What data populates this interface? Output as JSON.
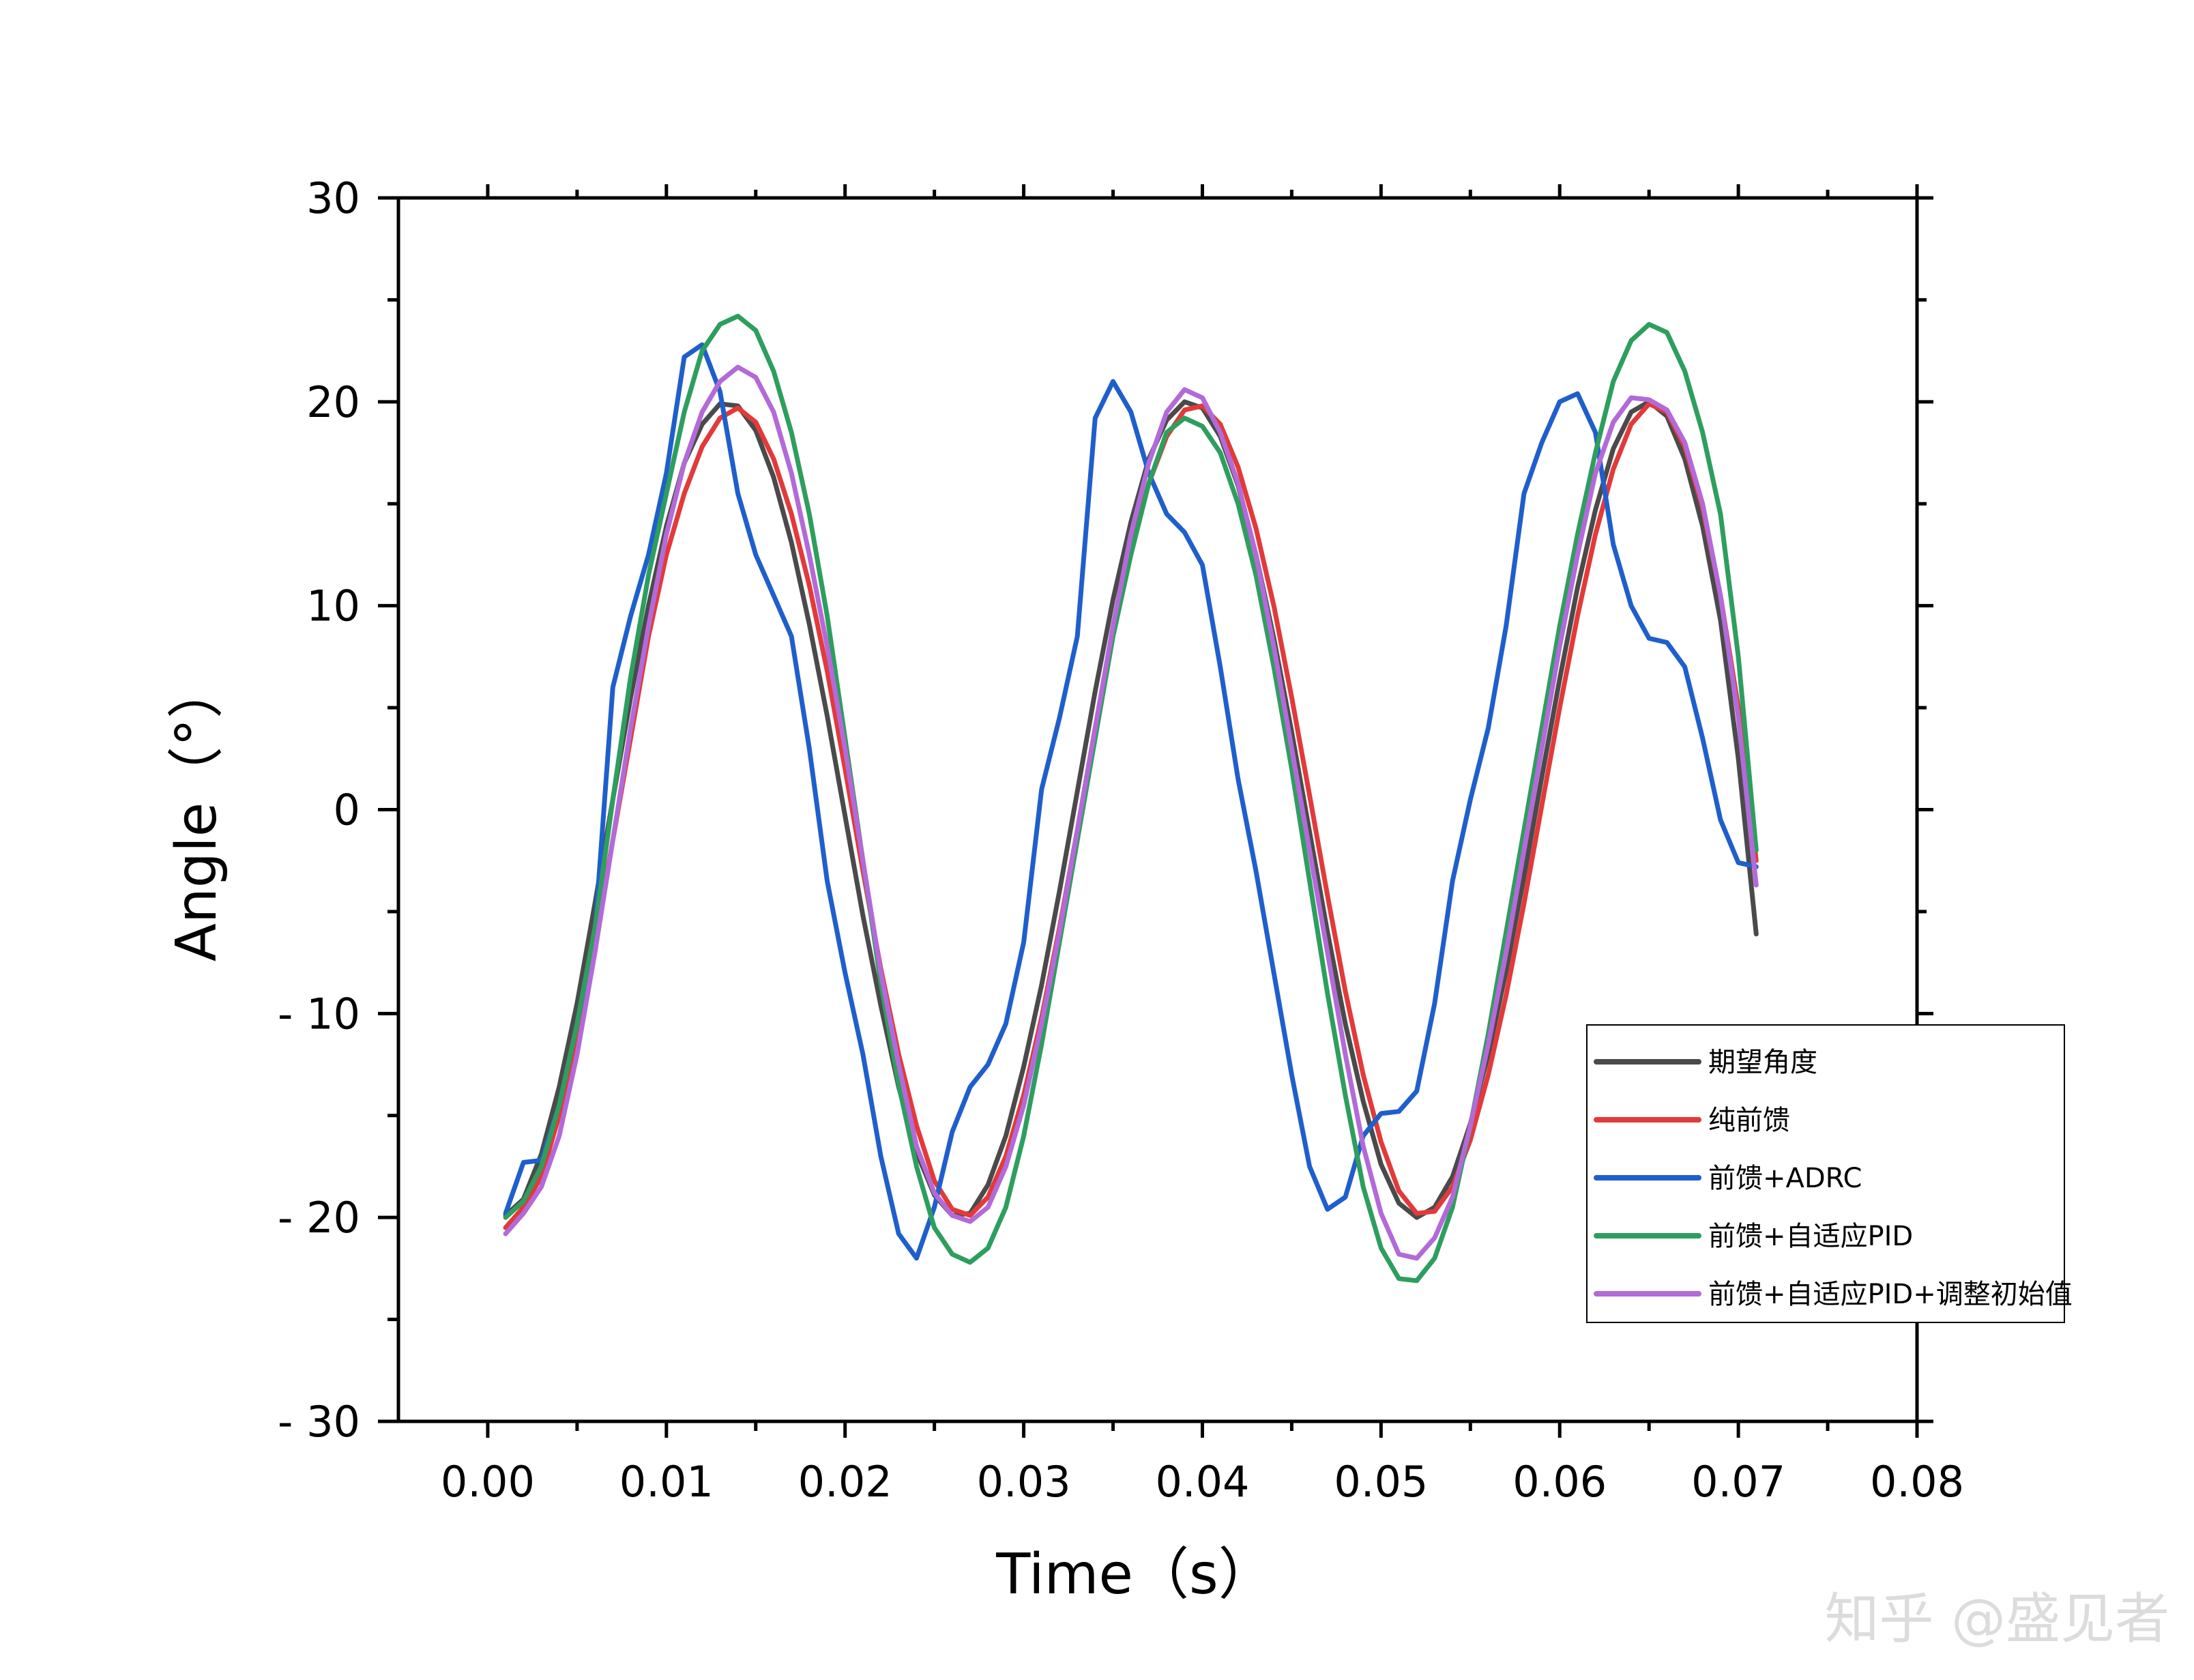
{
  "chart_data": {
    "type": "line",
    "title": "",
    "xlabel": "Time（s）",
    "ylabel": "Angle（°）",
    "xlim": [
      -0.005,
      0.08
    ],
    "ylim": [
      -30,
      30
    ],
    "x_ticks": [
      0.0,
      0.01,
      0.02,
      0.03,
      0.04,
      0.05,
      0.06,
      0.07,
      0.08
    ],
    "x_tick_labels": [
      "0.00",
      "0.01",
      "0.02",
      "0.03",
      "0.04",
      "0.05",
      "0.06",
      "0.07",
      "0.08"
    ],
    "y_ticks": [
      -30,
      -20,
      -10,
      0,
      10,
      20,
      30
    ],
    "y_tick_labels": [
      "- 30",
      "- 20",
      "- 10",
      "0",
      "10",
      "20",
      "30"
    ],
    "legend_position": "lower-right",
    "series": [
      {
        "name": "期望角度",
        "color": "#4a4a4a",
        "x": [
          0.001,
          0.002,
          0.003,
          0.004,
          0.005,
          0.006,
          0.007,
          0.008,
          0.009,
          0.01,
          0.011,
          0.012,
          0.013,
          0.014,
          0.015,
          0.016,
          0.017,
          0.018,
          0.019,
          0.02,
          0.021,
          0.022,
          0.023,
          0.024,
          0.025,
          0.026,
          0.027,
          0.028,
          0.029,
          0.03,
          0.031,
          0.032,
          0.033,
          0.034,
          0.035,
          0.036,
          0.037,
          0.038,
          0.039,
          0.04,
          0.041,
          0.042,
          0.043,
          0.044,
          0.045,
          0.046,
          0.047,
          0.048,
          0.049,
          0.05,
          0.051,
          0.052,
          0.053,
          0.054,
          0.055,
          0.056,
          0.057,
          0.058,
          0.059,
          0.06,
          0.061,
          0.062,
          0.063,
          0.064,
          0.065,
          0.066,
          0.067,
          0.068,
          0.069,
          0.07,
          0.071
        ],
        "values": [
          -19.9,
          -19.1,
          -16.9,
          -13.6,
          -9.5,
          -4.6,
          0.5,
          5.5,
          10.0,
          13.9,
          17.0,
          18.9,
          19.9,
          19.8,
          18.6,
          16.3,
          13.1,
          9.1,
          4.6,
          -0.3,
          -5.2,
          -9.6,
          -13.6,
          -16.8,
          -18.9,
          -19.9,
          -19.8,
          -18.4,
          -16.0,
          -12.6,
          -8.6,
          -4.0,
          0.9,
          5.8,
          10.3,
          14.1,
          17.2,
          19.1,
          20.0,
          19.7,
          18.3,
          15.9,
          12.5,
          8.4,
          3.8,
          -1.1,
          -6.0,
          -10.5,
          -14.3,
          -17.4,
          -19.3,
          -20.0,
          -19.5,
          -18.0,
          -15.4,
          -12.0,
          -7.9,
          -3.3,
          1.6,
          6.4,
          10.9,
          14.7,
          17.7,
          19.5,
          20.0,
          19.3,
          17.2,
          13.9,
          9.3,
          2.5,
          -6.1
        ]
      },
      {
        "name": " 纯前馈",
        "color": "#e23a3a",
        "x": [
          0.001,
          0.002,
          0.003,
          0.004,
          0.005,
          0.006,
          0.007,
          0.008,
          0.009,
          0.01,
          0.011,
          0.012,
          0.013,
          0.014,
          0.015,
          0.016,
          0.017,
          0.018,
          0.019,
          0.02,
          0.021,
          0.022,
          0.023,
          0.024,
          0.025,
          0.026,
          0.027,
          0.028,
          0.029,
          0.03,
          0.031,
          0.032,
          0.033,
          0.034,
          0.035,
          0.036,
          0.037,
          0.038,
          0.039,
          0.04,
          0.041,
          0.042,
          0.043,
          0.044,
          0.045,
          0.046,
          0.047,
          0.048,
          0.049,
          0.05,
          0.051,
          0.052,
          0.053,
          0.054,
          0.055,
          0.056,
          0.057,
          0.058,
          0.059,
          0.06,
          0.061,
          0.062,
          0.063,
          0.064,
          0.065,
          0.066,
          0.067,
          0.068,
          0.069,
          0.07,
          0.071
        ],
        "values": [
          -20.5,
          -19.5,
          -18.0,
          -15.0,
          -11.0,
          -6.5,
          -1.5,
          3.5,
          8.5,
          12.5,
          15.5,
          17.8,
          19.2,
          19.7,
          19.0,
          17.2,
          14.5,
          11.0,
          6.8,
          2.0,
          -3.0,
          -7.8,
          -12.0,
          -15.5,
          -18.2,
          -19.6,
          -19.9,
          -19.0,
          -17.0,
          -14.0,
          -10.2,
          -5.8,
          -1.0,
          4.0,
          8.8,
          12.8,
          16.0,
          18.3,
          19.6,
          19.8,
          18.9,
          16.8,
          13.8,
          10.0,
          5.5,
          0.7,
          -4.2,
          -8.9,
          -13.0,
          -16.3,
          -18.7,
          -19.8,
          -19.7,
          -18.5,
          -16.2,
          -13.0,
          -9.1,
          -4.6,
          0.2,
          5.0,
          9.5,
          13.5,
          16.7,
          18.9,
          19.9,
          19.5,
          17.8,
          14.8,
          10.5,
          5.0,
          -2.5
        ]
      },
      {
        "name": "前馈+ADRC",
        "color": "#1f5fcc",
        "x": [
          0.001,
          0.002,
          0.003,
          0.004,
          0.005,
          0.006,
          0.007,
          0.008,
          0.009,
          0.01,
          0.011,
          0.012,
          0.013,
          0.014,
          0.015,
          0.016,
          0.017,
          0.018,
          0.019,
          0.02,
          0.021,
          0.022,
          0.023,
          0.024,
          0.025,
          0.026,
          0.027,
          0.028,
          0.029,
          0.03,
          0.031,
          0.032,
          0.033,
          0.034,
          0.035,
          0.036,
          0.037,
          0.038,
          0.039,
          0.04,
          0.041,
          0.042,
          0.043,
          0.044,
          0.045,
          0.046,
          0.047,
          0.048,
          0.049,
          0.05,
          0.051,
          0.052,
          0.053,
          0.054,
          0.055,
          0.056,
          0.057,
          0.058,
          0.059,
          0.06,
          0.061,
          0.062,
          0.063,
          0.064,
          0.065,
          0.066,
          0.067,
          0.068,
          0.069,
          0.07,
          0.071
        ],
        "values": [
          -19.8,
          -17.3,
          -17.2,
          -14.5,
          -10.5,
          -6.0,
          6.0,
          9.5,
          12.5,
          16.5,
          22.2,
          22.8,
          20.5,
          15.5,
          12.5,
          10.5,
          8.5,
          3.0,
          -3.5,
          -8.0,
          -12.0,
          -17.0,
          -20.8,
          -22.0,
          -19.5,
          -15.8,
          -13.6,
          -12.5,
          -10.5,
          -6.5,
          1.0,
          4.5,
          8.5,
          19.2,
          21.0,
          19.5,
          16.5,
          14.5,
          13.6,
          12.0,
          7.0,
          1.5,
          -3.0,
          -8.0,
          -13.0,
          -17.5,
          -19.6,
          -19.0,
          -16.0,
          -14.9,
          -14.8,
          -13.8,
          -9.5,
          -3.5,
          0.5,
          4.0,
          9.0,
          15.5,
          18.0,
          20.0,
          20.4,
          18.5,
          13.0,
          10.0,
          8.4,
          8.2,
          7.0,
          3.5,
          -0.5,
          -2.6,
          -2.8
        ]
      },
      {
        "name": "前馈+自适应PID",
        "color": "#2e9e5e",
        "x": [
          0.001,
          0.002,
          0.003,
          0.004,
          0.005,
          0.006,
          0.007,
          0.008,
          0.009,
          0.01,
          0.011,
          0.012,
          0.013,
          0.014,
          0.015,
          0.016,
          0.017,
          0.018,
          0.019,
          0.02,
          0.021,
          0.022,
          0.023,
          0.024,
          0.025,
          0.026,
          0.027,
          0.028,
          0.029,
          0.03,
          0.031,
          0.032,
          0.033,
          0.034,
          0.035,
          0.036,
          0.037,
          0.038,
          0.039,
          0.04,
          0.041,
          0.042,
          0.043,
          0.044,
          0.045,
          0.046,
          0.047,
          0.048,
          0.049,
          0.05,
          0.051,
          0.052,
          0.053,
          0.054,
          0.055,
          0.056,
          0.057,
          0.058,
          0.059,
          0.06,
          0.061,
          0.062,
          0.063,
          0.064,
          0.065,
          0.066,
          0.067,
          0.068,
          0.069,
          0.07,
          0.071
        ],
        "values": [
          -20.0,
          -19.2,
          -17.5,
          -14.5,
          -10.5,
          -5.8,
          0.5,
          6.5,
          11.5,
          15.5,
          19.5,
          22.5,
          23.8,
          24.2,
          23.5,
          21.5,
          18.5,
          14.5,
          9.5,
          3.5,
          -2.5,
          -8.5,
          -13.5,
          -17.5,
          -20.5,
          -21.8,
          -22.2,
          -21.5,
          -19.5,
          -16.0,
          -11.5,
          -6.5,
          -1.5,
          3.5,
          8.5,
          12.5,
          16.0,
          18.5,
          19.2,
          18.8,
          17.5,
          15.0,
          11.5,
          7.0,
          2.0,
          -3.5,
          -9.0,
          -14.0,
          -18.5,
          -21.5,
          -23.0,
          -23.1,
          -22.0,
          -19.5,
          -15.5,
          -11.0,
          -6.0,
          -1.0,
          4.0,
          9.0,
          13.5,
          17.5,
          21.0,
          23.0,
          23.8,
          23.4,
          21.5,
          18.5,
          14.5,
          7.5,
          -2.0
        ]
      },
      {
        "name": "前馈+自适应PID+调整初始值",
        "color": "#b36ad8",
        "x": [
          0.001,
          0.002,
          0.003,
          0.004,
          0.005,
          0.006,
          0.007,
          0.008,
          0.009,
          0.01,
          0.011,
          0.012,
          0.013,
          0.014,
          0.015,
          0.016,
          0.017,
          0.018,
          0.019,
          0.02,
          0.021,
          0.022,
          0.023,
          0.024,
          0.025,
          0.026,
          0.027,
          0.028,
          0.029,
          0.03,
          0.031,
          0.032,
          0.033,
          0.034,
          0.035,
          0.036,
          0.037,
          0.038,
          0.039,
          0.04,
          0.041,
          0.042,
          0.043,
          0.044,
          0.045,
          0.046,
          0.047,
          0.048,
          0.049,
          0.05,
          0.051,
          0.052,
          0.053,
          0.054,
          0.055,
          0.056,
          0.057,
          0.058,
          0.059,
          0.06,
          0.061,
          0.062,
          0.063,
          0.064,
          0.065,
          0.066,
          0.067,
          0.068,
          0.069,
          0.07,
          0.071
        ],
        "values": [
          -20.8,
          -19.8,
          -18.5,
          -16.0,
          -12.0,
          -7.0,
          -1.5,
          4.0,
          9.0,
          13.5,
          17.0,
          19.5,
          21.0,
          21.7,
          21.2,
          19.5,
          16.5,
          12.5,
          8.0,
          3.0,
          -2.5,
          -8.0,
          -12.5,
          -16.5,
          -18.8,
          -19.9,
          -20.2,
          -19.5,
          -17.5,
          -14.5,
          -10.5,
          -6.0,
          -1.0,
          4.0,
          9.0,
          13.5,
          17.0,
          19.5,
          20.6,
          20.2,
          18.5,
          16.0,
          12.5,
          8.0,
          3.0,
          -2.0,
          -7.0,
          -12.0,
          -16.5,
          -19.8,
          -21.8,
          -22.0,
          -21.0,
          -19.0,
          -15.5,
          -11.5,
          -7.0,
          -2.0,
          3.0,
          8.0,
          12.5,
          16.5,
          19.0,
          20.2,
          20.1,
          19.6,
          18.0,
          15.0,
          10.5,
          4.5,
          -3.7
        ]
      }
    ]
  },
  "watermark": "知乎 @盛见者"
}
